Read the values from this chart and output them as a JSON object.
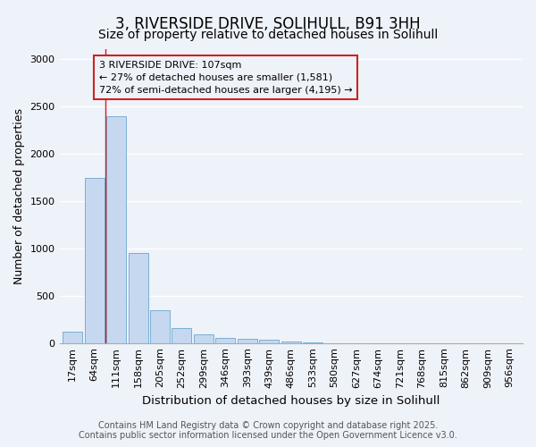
{
  "title": "3, RIVERSIDE DRIVE, SOLIHULL, B91 3HH",
  "subtitle": "Size of property relative to detached houses in Solihull",
  "xlabel": "Distribution of detached houses by size in Solihull",
  "ylabel": "Number of detached properties",
  "categories": [
    "17sqm",
    "64sqm",
    "111sqm",
    "158sqm",
    "205sqm",
    "252sqm",
    "299sqm",
    "346sqm",
    "393sqm",
    "439sqm",
    "486sqm",
    "533sqm",
    "580sqm",
    "627sqm",
    "674sqm",
    "721sqm",
    "768sqm",
    "815sqm",
    "862sqm",
    "909sqm",
    "956sqm"
  ],
  "values": [
    120,
    1740,
    2390,
    950,
    345,
    155,
    88,
    55,
    45,
    30,
    20,
    8,
    0,
    0,
    0,
    0,
    0,
    0,
    0,
    0,
    0
  ],
  "bar_color": "#c5d8f0",
  "bar_edge_color": "#7bafd4",
  "vline_x_index": 2,
  "vline_color": "#cc2222",
  "annotation_line1": "3 RIVERSIDE DRIVE: 107sqm",
  "annotation_line2": "← 27% of detached houses are smaller (1,581)",
  "annotation_line3": "72% of semi-detached houses are larger (4,195) →",
  "annotation_box_edgecolor": "#cc2222",
  "background_color": "#eef2f9",
  "grid_color": "#ffffff",
  "ylim": [
    0,
    3100
  ],
  "yticks": [
    0,
    500,
    1000,
    1500,
    2000,
    2500,
    3000
  ],
  "footer_line1": "Contains HM Land Registry data © Crown copyright and database right 2025.",
  "footer_line2": "Contains public sector information licensed under the Open Government Licence v3.0.",
  "title_fontsize": 12,
  "subtitle_fontsize": 10,
  "xlabel_fontsize": 9.5,
  "ylabel_fontsize": 9,
  "tick_fontsize": 8,
  "annotation_fontsize": 8,
  "footer_fontsize": 7
}
